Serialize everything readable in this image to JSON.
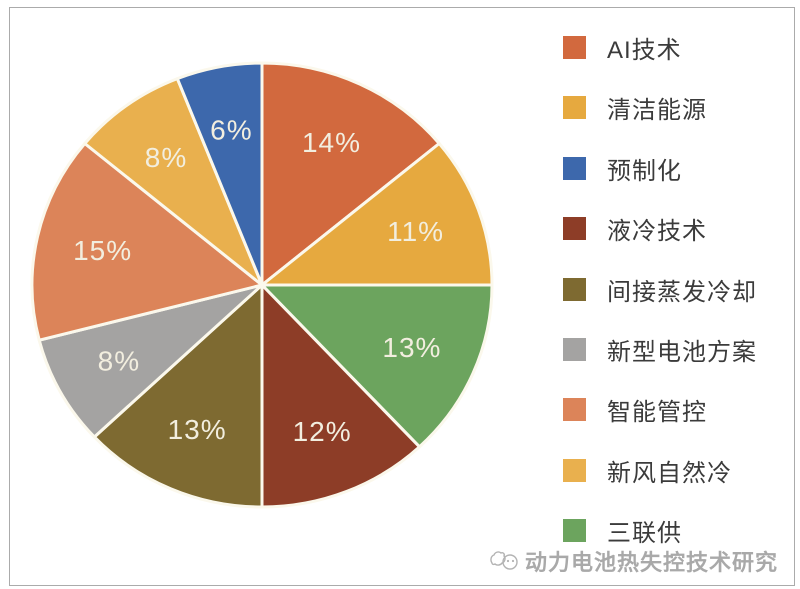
{
  "chart_data": {
    "type": "pie",
    "title": "",
    "start_angle_deg": 0,
    "direction": "clockwise",
    "slices": [
      {
        "label": "AI技术",
        "value": 14,
        "display": "14%",
        "color": "#d2693e"
      },
      {
        "label": "清洁能源",
        "value": 11,
        "display": "11%",
        "color": "#e6a93f"
      },
      {
        "label": "三联供",
        "value": 13,
        "display": "13%",
        "color": "#6ca45e"
      },
      {
        "label": "液冷技术",
        "value": 12,
        "display": "12%",
        "color": "#8d3d27"
      },
      {
        "label": "间接蒸发冷却",
        "value": 13,
        "display": "13%",
        "color": "#7e6a31"
      },
      {
        "label": "新型电池方案",
        "value": 8,
        "display": "8%",
        "color": "#a4a3a2"
      },
      {
        "label": "智能管控",
        "value": 15,
        "display": "15%",
        "color": "#dc8459"
      },
      {
        "label": "新风自然冷",
        "value": 8,
        "display": "8%",
        "color": "#e9b04e"
      },
      {
        "label": "预制化",
        "value": 6,
        "display": "6%",
        "color": "#3d68ac"
      }
    ],
    "legend": [
      {
        "label": "AI技术",
        "color": "#d2693e"
      },
      {
        "label": "清洁能源",
        "color": "#e6a93f"
      },
      {
        "label": "预制化",
        "color": "#3d68ac"
      },
      {
        "label": "液冷技术",
        "color": "#8d3d27"
      },
      {
        "label": "间接蒸发冷却",
        "color": "#7e6a31"
      },
      {
        "label": "新型电池方案",
        "color": "#a4a3a2"
      },
      {
        "label": "智能管控",
        "color": "#dc8459"
      },
      {
        "label": "新风自然冷",
        "color": "#e9b04e"
      },
      {
        "label": "三联供",
        "color": "#6ca45e"
      }
    ],
    "legend_position": "right",
    "data_label_color": "#f2eedf",
    "separator_color": "#fbf8ec",
    "label_radius_fraction": 0.71
  },
  "watermark": {
    "text": "动力电池热失控技术研究",
    "icon": "watermark-logo-icon"
  }
}
